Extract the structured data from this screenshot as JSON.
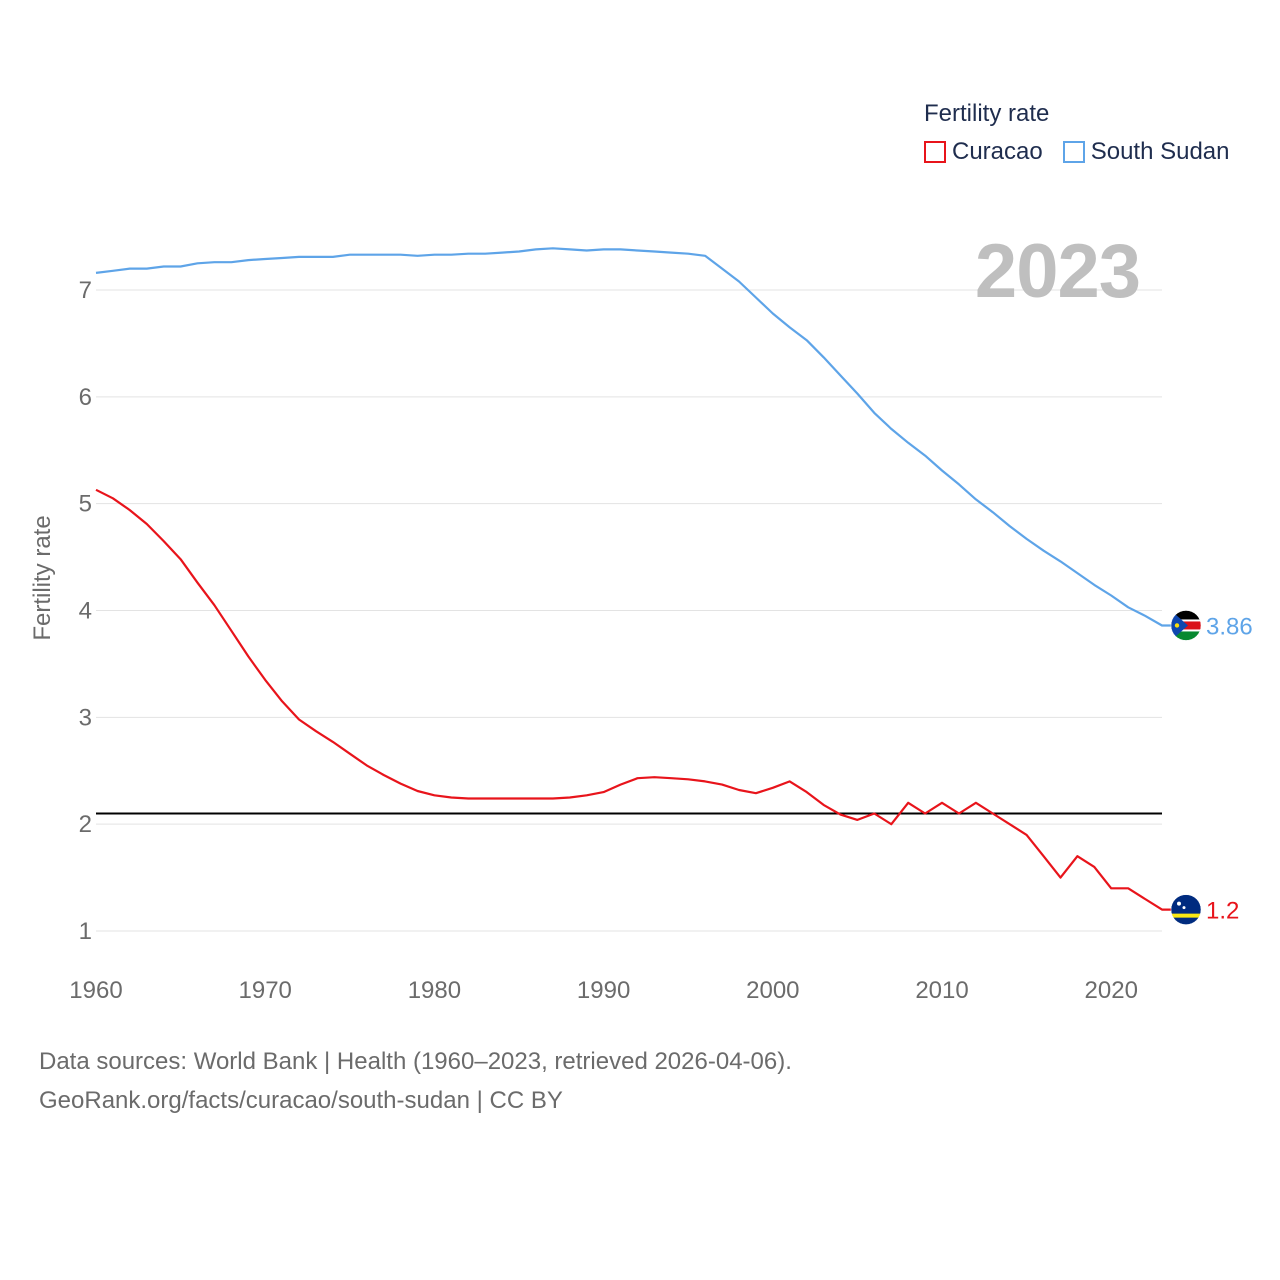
{
  "legend": {
    "title": "Fertility rate",
    "items": [
      {
        "name": "Curacao",
        "color": "#e8141b"
      },
      {
        "name": "South Sudan",
        "color": "#5ea4e8"
      }
    ]
  },
  "year_label": "2023",
  "footer": {
    "line1": "Data sources: World Bank | Health (1960–2023, retrieved 2026-04-06).",
    "line2": "GeoRank.org/facts/curacao/south-sudan | CC BY"
  },
  "chart_data": {
    "type": "line",
    "title": "Fertility rate",
    "xlabel": "",
    "ylabel": "Fertility rate",
    "xlim": [
      1960,
      2023
    ],
    "ylim": [
      0.8,
      7.3
    ],
    "x_ticks": [
      1960,
      1970,
      1980,
      1990,
      2000,
      2010,
      2020
    ],
    "y_ticks": [
      1,
      2,
      3,
      4,
      5,
      6,
      7
    ],
    "reference_line": {
      "value": 2.1,
      "color": "#000000"
    },
    "x": [
      1960,
      1961,
      1962,
      1963,
      1964,
      1965,
      1966,
      1967,
      1968,
      1969,
      1970,
      1971,
      1972,
      1973,
      1974,
      1975,
      1976,
      1977,
      1978,
      1979,
      1980,
      1981,
      1982,
      1983,
      1984,
      1985,
      1986,
      1987,
      1988,
      1989,
      1990,
      1991,
      1992,
      1993,
      1994,
      1995,
      1996,
      1997,
      1998,
      1999,
      2000,
      2001,
      2002,
      2003,
      2004,
      2005,
      2006,
      2007,
      2008,
      2009,
      2010,
      2011,
      2012,
      2013,
      2014,
      2015,
      2016,
      2017,
      2018,
      2019,
      2020,
      2021,
      2022,
      2023
    ],
    "series": [
      {
        "name": "Curacao",
        "color": "#e8141b",
        "end_label": "1.2",
        "values": [
          5.13,
          5.05,
          4.94,
          4.81,
          4.65,
          4.48,
          4.26,
          4.05,
          3.81,
          3.57,
          3.35,
          3.15,
          2.98,
          2.87,
          2.77,
          2.66,
          2.55,
          2.46,
          2.38,
          2.31,
          2.27,
          2.25,
          2.24,
          2.24,
          2.24,
          2.24,
          2.24,
          2.24,
          2.25,
          2.27,
          2.3,
          2.37,
          2.43,
          2.44,
          2.43,
          2.42,
          2.4,
          2.37,
          2.32,
          2.29,
          2.34,
          2.4,
          2.3,
          2.18,
          2.09,
          2.04,
          2.1,
          2.0,
          2.2,
          2.1,
          2.2,
          2.1,
          2.2,
          2.1,
          2.0,
          1.9,
          1.7,
          1.5,
          1.7,
          1.6,
          1.4,
          1.4,
          1.3,
          1.2
        ]
      },
      {
        "name": "South Sudan",
        "color": "#5ea4e8",
        "end_label": "3.86",
        "values": [
          7.16,
          7.18,
          7.2,
          7.2,
          7.22,
          7.22,
          7.25,
          7.26,
          7.26,
          7.28,
          7.29,
          7.3,
          7.31,
          7.31,
          7.31,
          7.33,
          7.33,
          7.33,
          7.33,
          7.32,
          7.33,
          7.33,
          7.34,
          7.34,
          7.35,
          7.36,
          7.38,
          7.39,
          7.38,
          7.37,
          7.38,
          7.38,
          7.37,
          7.36,
          7.35,
          7.34,
          7.32,
          7.2,
          7.08,
          6.93,
          6.78,
          6.65,
          6.53,
          6.37,
          6.2,
          6.03,
          5.85,
          5.7,
          5.57,
          5.45,
          5.31,
          5.18,
          5.04,
          4.92,
          4.79,
          4.67,
          4.56,
          4.46,
          4.35,
          4.24,
          4.14,
          4.03,
          3.95,
          3.86
        ]
      }
    ]
  }
}
